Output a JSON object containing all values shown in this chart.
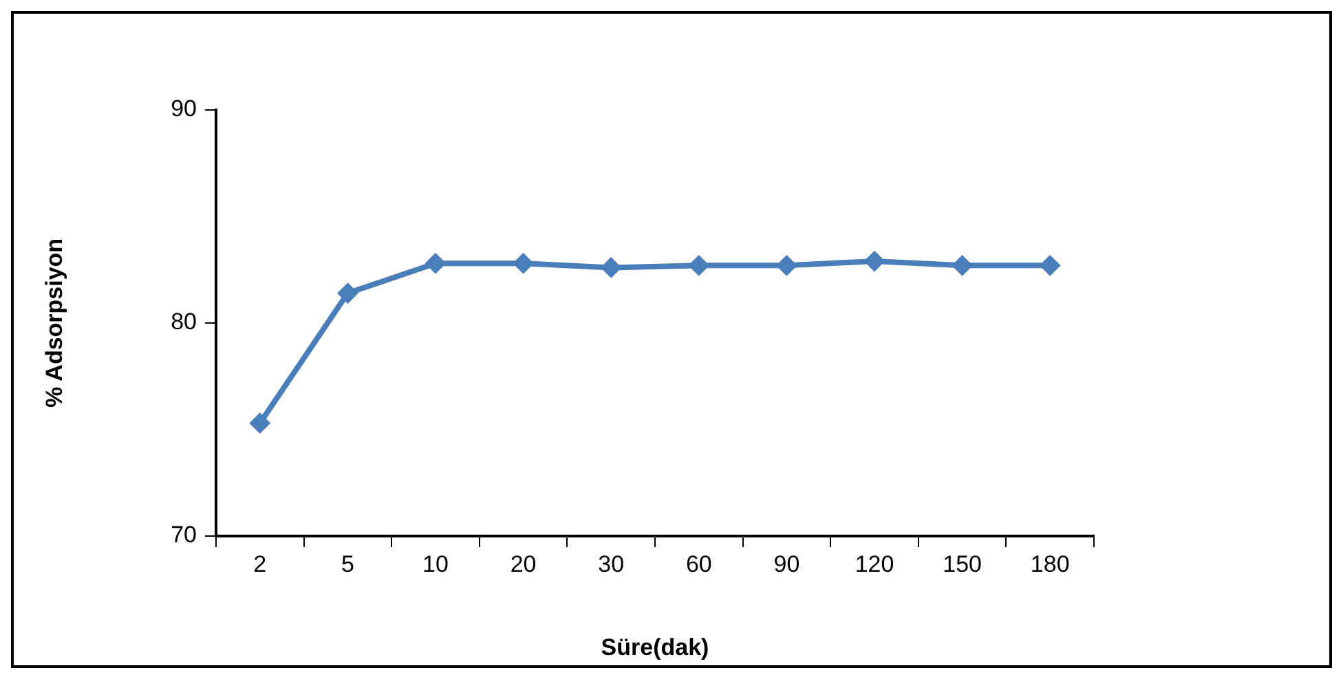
{
  "chart_data": {
    "type": "line",
    "xlabel": "Süre(dak)",
    "ylabel": "% Adsorpsiyon",
    "categories": [
      "2",
      "5",
      "10",
      "20",
      "30",
      "60",
      "90",
      "120",
      "150",
      "180"
    ],
    "series": [
      {
        "color": "#4a7ebb",
        "values": [
          75.3,
          81.4,
          82.8,
          82.8,
          82.6,
          82.7,
          82.7,
          82.9,
          82.7,
          82.7
        ]
      }
    ],
    "ylim": [
      70,
      90
    ],
    "yticks": [
      70,
      80,
      90
    ],
    "grid": false,
    "legend": false,
    "marker": "diamond",
    "line_style": "solid"
  }
}
